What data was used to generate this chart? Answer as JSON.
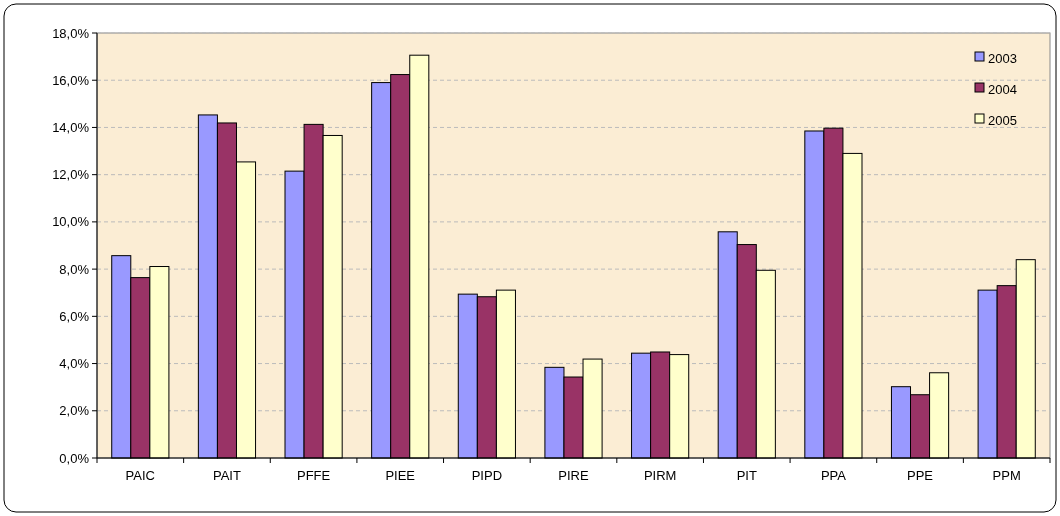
{
  "chart_data": {
    "type": "bar",
    "categories": [
      "PAIC",
      "PAIT",
      "PFFE",
      "PIEE",
      "PIPD",
      "PIRE",
      "PIRM",
      "PIT",
      "PPA",
      "PPE",
      "PPM"
    ],
    "series": [
      {
        "name": "2003",
        "color": "#9999ff",
        "values": [
          8.57,
          14.53,
          12.15,
          15.9,
          6.94,
          3.84,
          4.44,
          9.58,
          13.85,
          3.02,
          7.11
        ]
      },
      {
        "name": "2004",
        "color": "#993366",
        "values": [
          7.64,
          14.19,
          14.13,
          16.24,
          6.83,
          3.43,
          4.49,
          9.04,
          13.97,
          2.68,
          7.3
        ]
      },
      {
        "name": "2005",
        "color": "#ffffcc",
        "values": [
          8.11,
          12.54,
          13.66,
          17.06,
          7.11,
          4.19,
          4.38,
          7.95,
          12.9,
          3.61,
          8.4
        ]
      }
    ],
    "ylim": [
      0,
      18
    ],
    "yticks": [
      {
        "value": 0,
        "label": "0,0%"
      },
      {
        "value": 2,
        "label": "2,0%"
      },
      {
        "value": 4,
        "label": "4,0%"
      },
      {
        "value": 6,
        "label": "6,0%"
      },
      {
        "value": 8,
        "label": "8,0%"
      },
      {
        "value": 10,
        "label": "10,0%"
      },
      {
        "value": 12,
        "label": "12,0%"
      },
      {
        "value": 14,
        "label": "14,0%"
      },
      {
        "value": 16,
        "label": "16,0%"
      },
      {
        "value": 18,
        "label": "18,0%"
      }
    ],
    "grid": "y",
    "legend": "top right"
  }
}
